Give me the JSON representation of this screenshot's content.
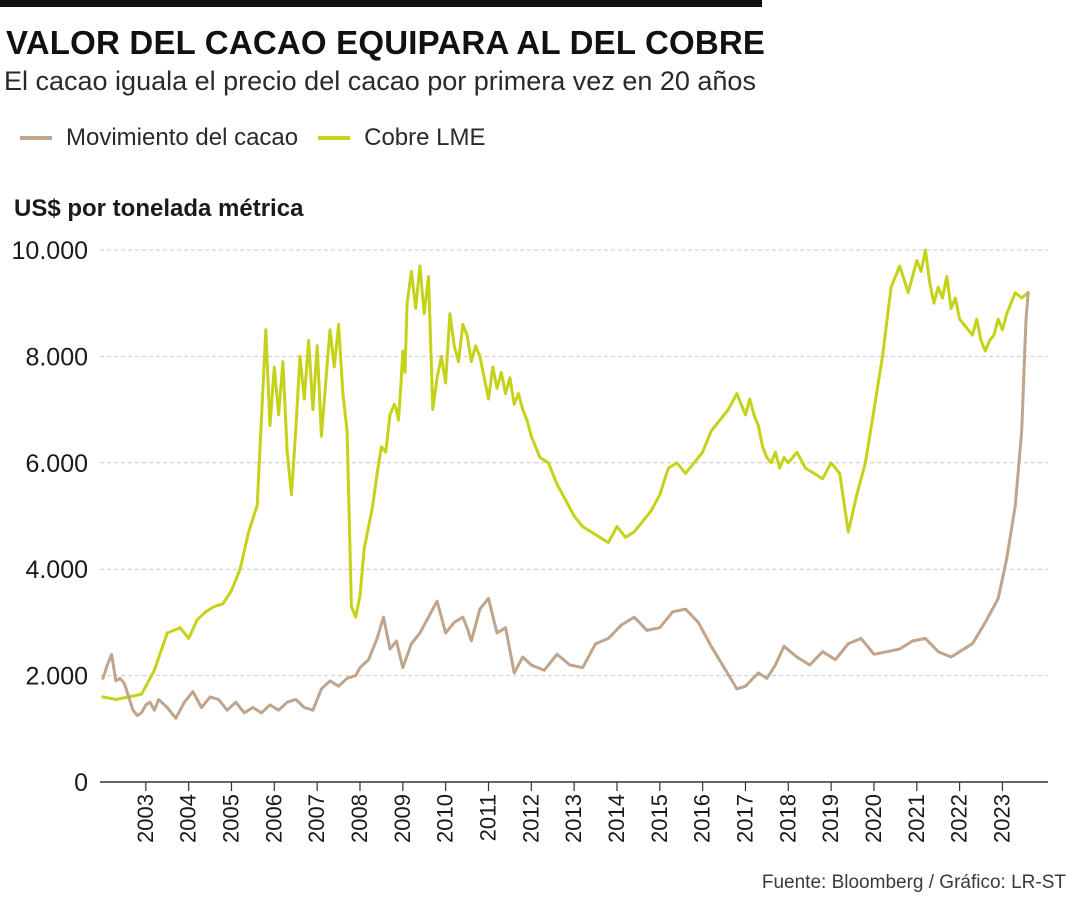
{
  "header": {
    "title": "VALOR DEL CACAO EQUIPARA AL DEL COBRE",
    "subtitle": "El cacao iguala el precio del cacao por primera vez en 20 años"
  },
  "source": "Fuente: Bloomberg / Gráfico: LR-ST",
  "colors": {
    "cacao": "#c1a48c",
    "cobre": "#c6d21a",
    "grid": "#c9c9c9",
    "axis": "#333333"
  },
  "chart_data": {
    "type": "line",
    "title": "VALOR DEL CACAO EQUIPARA AL DEL COBRE",
    "subtitle": "El cacao iguala el precio del cacao por primera vez en 20 años",
    "ylabel": "US$ por tonelada métrica",
    "xlabel": "",
    "ylim": [
      0,
      10000
    ],
    "xlim": [
      2002,
      2023.9
    ],
    "yticks": [
      {
        "value": 0,
        "label": "0"
      },
      {
        "value": 2000,
        "label": "2.000"
      },
      {
        "value": 4000,
        "label": "4.000"
      },
      {
        "value": 6000,
        "label": "6.000"
      },
      {
        "value": 8000,
        "label": "8.000"
      },
      {
        "value": 10000,
        "label": "10.000"
      }
    ],
    "xticks": [
      {
        "value": 2003,
        "label": "2003"
      },
      {
        "value": 2004,
        "label": "2004"
      },
      {
        "value": 2005,
        "label": "2005"
      },
      {
        "value": 2006,
        "label": "2006"
      },
      {
        "value": 2007,
        "label": "2007"
      },
      {
        "value": 2008,
        "label": "2008"
      },
      {
        "value": 2009,
        "label": "2009"
      },
      {
        "value": 2010,
        "label": "2010"
      },
      {
        "value": 2011,
        "label": "2011"
      },
      {
        "value": 2012,
        "label": "2012"
      },
      {
        "value": 2013,
        "label": "2013"
      },
      {
        "value": 2014,
        "label": "2014"
      },
      {
        "value": 2015,
        "label": "2015"
      },
      {
        "value": 2016,
        "label": "2016"
      },
      {
        "value": 2017,
        "label": "2017"
      },
      {
        "value": 2018,
        "label": "2018"
      },
      {
        "value": 2019,
        "label": "2019"
      },
      {
        "value": 2020,
        "label": "2020"
      },
      {
        "value": 2021,
        "label": "2021"
      },
      {
        "value": 2022,
        "label": "2022"
      },
      {
        "value": 2023,
        "label": "2023"
      }
    ],
    "grid": true,
    "legend": "top-left",
    "series": [
      {
        "name": "Movimiento del cacao",
        "color": "#c1a48c",
        "x": [
          2002.0,
          2002.1,
          2002.2,
          2002.3,
          2002.4,
          2002.5,
          2002.6,
          2002.7,
          2002.8,
          2002.9,
          2003.0,
          2003.1,
          2003.2,
          2003.3,
          2003.5,
          2003.7,
          2003.9,
          2004.1,
          2004.3,
          2004.5,
          2004.7,
          2004.9,
          2005.1,
          2005.3,
          2005.5,
          2005.7,
          2005.9,
          2006.1,
          2006.3,
          2006.5,
          2006.7,
          2006.9,
          2007.1,
          2007.3,
          2007.5,
          2007.7,
          2007.9,
          2008.0,
          2008.2,
          2008.4,
          2008.55,
          2008.7,
          2008.85,
          2009.0,
          2009.2,
          2009.4,
          2009.6,
          2009.8,
          2010.0,
          2010.2,
          2010.4,
          2010.5,
          2010.6,
          2010.8,
          2011.0,
          2011.2,
          2011.4,
          2011.6,
          2011.8,
          2012.0,
          2012.3,
          2012.6,
          2012.9,
          2013.2,
          2013.5,
          2013.8,
          2014.1,
          2014.4,
          2014.7,
          2015.0,
          2015.3,
          2015.6,
          2015.9,
          2016.2,
          2016.5,
          2016.8,
          2017.0,
          2017.3,
          2017.5,
          2017.7,
          2017.9,
          2018.2,
          2018.5,
          2018.8,
          2019.1,
          2019.4,
          2019.7,
          2020.0,
          2020.3,
          2020.6,
          2020.9,
          2021.2,
          2021.5,
          2021.8,
          2022.0,
          2022.3,
          2022.6,
          2022.9,
          2023.1,
          2023.3,
          2023.45,
          2023.55,
          2023.6
        ],
        "values": [
          1950,
          2200,
          2400,
          1900,
          1950,
          1850,
          1600,
          1350,
          1250,
          1300,
          1450,
          1500,
          1350,
          1550,
          1400,
          1200,
          1500,
          1700,
          1400,
          1600,
          1550,
          1350,
          1500,
          1300,
          1400,
          1300,
          1450,
          1350,
          1500,
          1550,
          1400,
          1350,
          1750,
          1900,
          1800,
          1950,
          2000,
          2150,
          2300,
          2700,
          3100,
          2500,
          2650,
          2150,
          2600,
          2800,
          3100,
          3400,
          2800,
          3000,
          3100,
          2900,
          2650,
          3250,
          3450,
          2800,
          2900,
          2050,
          2350,
          2200,
          2100,
          2400,
          2200,
          2150,
          2600,
          2700,
          2950,
          3100,
          2850,
          2900,
          3200,
          3250,
          3000,
          2550,
          2150,
          1750,
          1800,
          2050,
          1950,
          2200,
          2550,
          2350,
          2200,
          2450,
          2300,
          2600,
          2700,
          2400,
          2450,
          2500,
          2650,
          2700,
          2450,
          2350,
          2450,
          2600,
          3000,
          3450,
          4200,
          5200,
          6600,
          8700,
          9200
        ]
      },
      {
        "name": "Cobre LME",
        "color": "#c6d21a",
        "x": [
          2002.0,
          2002.3,
          2002.6,
          2002.9,
          2003.2,
          2003.5,
          2003.8,
          2004.0,
          2004.2,
          2004.4,
          2004.6,
          2004.8,
          2005.0,
          2005.2,
          2005.4,
          2005.6,
          2005.8,
          2005.9,
          2006.0,
          2006.1,
          2006.2,
          2006.3,
          2006.4,
          2006.5,
          2006.6,
          2006.7,
          2006.8,
          2006.9,
          2007.0,
          2007.1,
          2007.2,
          2007.3,
          2007.4,
          2007.5,
          2007.6,
          2007.7,
          2007.8,
          2007.9,
          2008.0,
          2008.1,
          2008.2,
          2008.3,
          2008.4,
          2008.5,
          2008.6,
          2008.7,
          2008.8,
          2008.85,
          2008.9,
          2008.95,
          2009.0,
          2009.05,
          2009.1,
          2009.2,
          2009.3,
          2009.4,
          2009.5,
          2009.6,
          2009.7,
          2009.8,
          2009.9,
          2010.0,
          2010.1,
          2010.2,
          2010.3,
          2010.4,
          2010.5,
          2010.6,
          2010.7,
          2010.8,
          2010.9,
          2011.0,
          2011.1,
          2011.2,
          2011.3,
          2011.4,
          2011.5,
          2011.6,
          2011.7,
          2011.8,
          2011.9,
          2012.0,
          2012.2,
          2012.4,
          2012.6,
          2012.8,
          2013.0,
          2013.2,
          2013.4,
          2013.6,
          2013.8,
          2014.0,
          2014.2,
          2014.4,
          2014.6,
          2014.8,
          2015.0,
          2015.2,
          2015.4,
          2015.6,
          2015.8,
          2016.0,
          2016.2,
          2016.4,
          2016.6,
          2016.8,
          2017.0,
          2017.1,
          2017.2,
          2017.3,
          2017.4,
          2017.5,
          2017.6,
          2017.7,
          2017.8,
          2017.9,
          2018.0,
          2018.2,
          2018.4,
          2018.6,
          2018.8,
          2019.0,
          2019.2,
          2019.4,
          2019.6,
          2019.8,
          2020.0,
          2020.2,
          2020.4,
          2020.6,
          2020.8,
          2021.0,
          2021.1,
          2021.2,
          2021.3,
          2021.4,
          2021.5,
          2021.6,
          2021.7,
          2021.8,
          2021.9,
          2022.0,
          2022.1,
          2022.2,
          2022.3,
          2022.4,
          2022.5,
          2022.6,
          2022.7,
          2022.8,
          2022.9,
          2023.0,
          2023.1,
          2023.2,
          2023.3,
          2023.45,
          2023.6
        ],
        "values": [
          1600,
          1550,
          1600,
          1650,
          2100,
          2800,
          2900,
          2700,
          3050,
          3200,
          3300,
          3350,
          3600,
          4000,
          4700,
          5200,
          8500,
          6700,
          7800,
          6900,
          7900,
          6200,
          5400,
          6600,
          8000,
          7200,
          8300,
          7000,
          8200,
          6500,
          7500,
          8500,
          7800,
          8600,
          7300,
          6600,
          3300,
          3100,
          3500,
          4400,
          4800,
          5200,
          5800,
          6300,
          6200,
          6900,
          7100,
          7000,
          6800,
          7400,
          8100,
          7700,
          9000,
          9600,
          8900,
          9700,
          8800,
          9500,
          7000,
          7600,
          8000,
          7500,
          8800,
          8200,
          7900,
          8600,
          8400,
          7900,
          8200,
          8000,
          7600,
          7200,
          7800,
          7400,
          7700,
          7300,
          7600,
          7100,
          7300,
          7000,
          6800,
          6500,
          6100,
          6000,
          5600,
          5300,
          5000,
          4800,
          4700,
          4600,
          4500,
          4800,
          4600,
          4700,
          4900,
          5100,
          5400,
          5900,
          6000,
          5800,
          6000,
          6200,
          6600,
          6800,
          7000,
          7300,
          6900,
          7200,
          6900,
          6700,
          6300,
          6100,
          6000,
          6200,
          5900,
          6100,
          6000,
          6200,
          5900,
          5800,
          5700,
          6000,
          5800,
          4700,
          5400,
          6000,
          7000,
          8000,
          9300,
          9700,
          9200,
          9800,
          9600,
          10000,
          9400,
          9000,
          9300,
          9100,
          9500,
          8900,
          9100,
          8700,
          8600,
          8500,
          8400,
          8700,
          8300,
          8100,
          8300,
          8400,
          8700,
          8500,
          8800,
          9000,
          9200,
          9100,
          9200
        ]
      }
    ]
  }
}
